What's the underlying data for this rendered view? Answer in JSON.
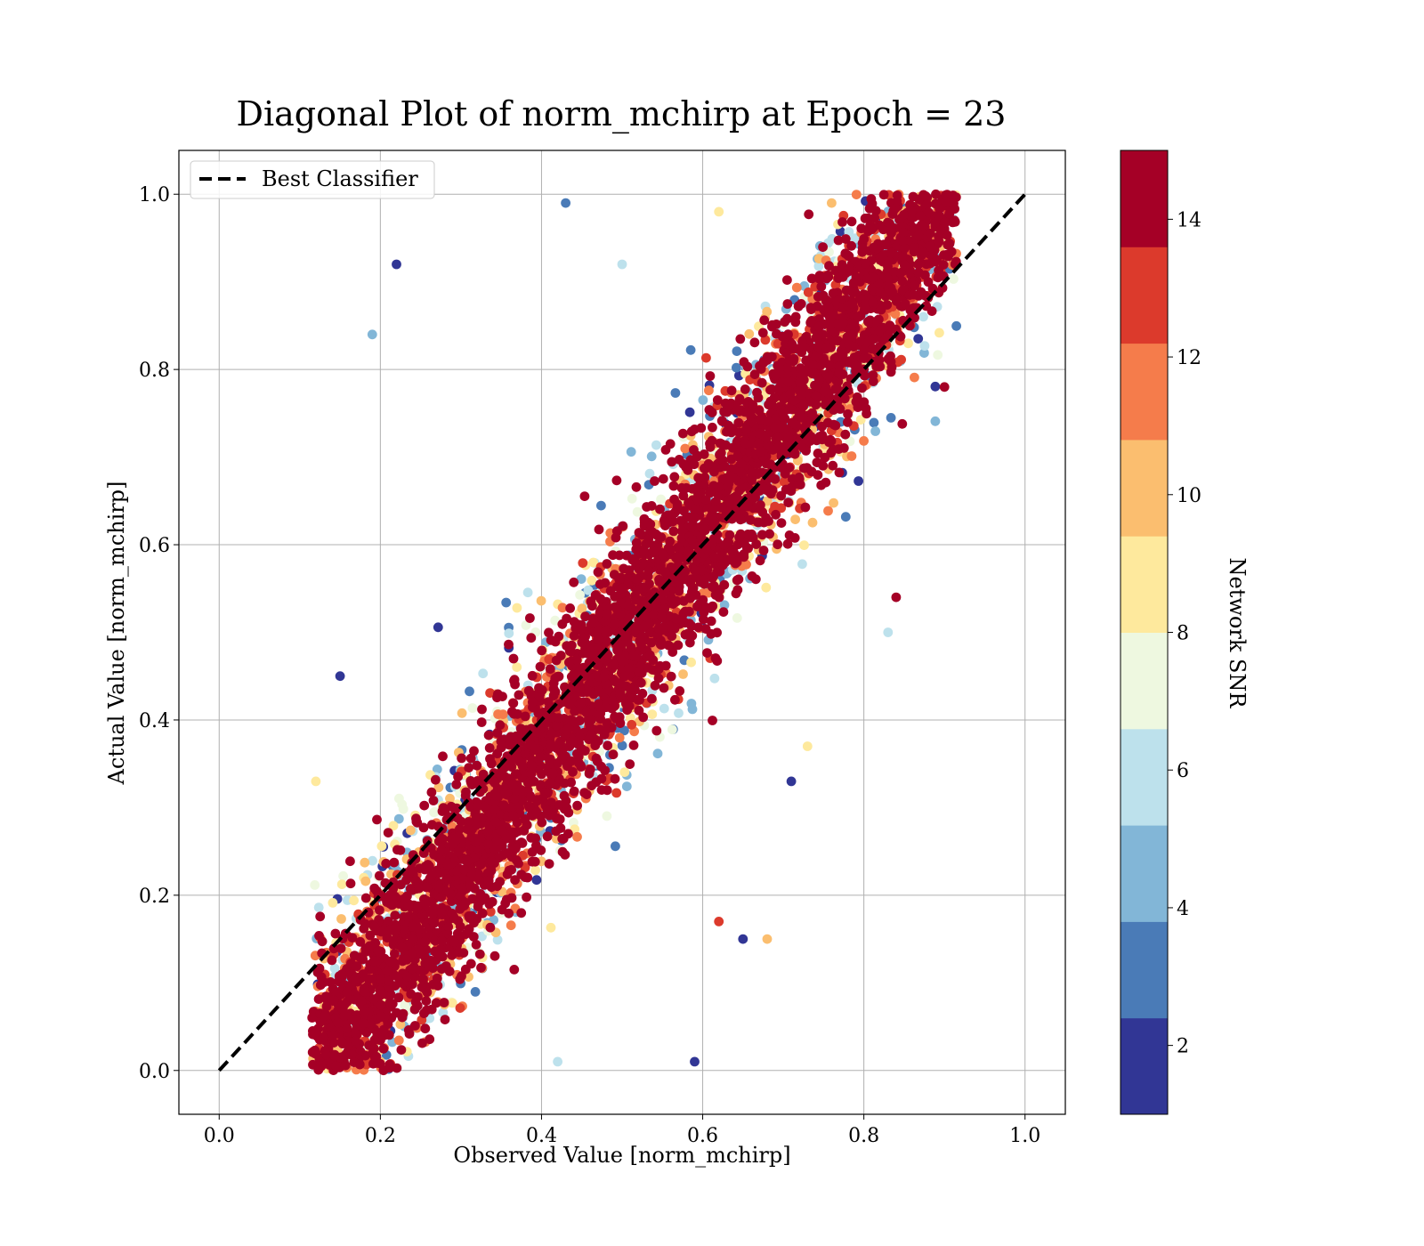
{
  "chart_data": {
    "type": "scatter",
    "title": "Diagonal Plot of norm_mchirp at Epoch = 23",
    "xlabel": "Observed Value [norm_mchirp]",
    "ylabel": "Actual Value [norm_mchirp]",
    "xlim": [
      -0.05,
      1.05
    ],
    "ylim": [
      -0.05,
      1.05
    ],
    "x_ticks": [
      0.0,
      0.2,
      0.4,
      0.6,
      0.8,
      1.0
    ],
    "y_ticks": [
      0.0,
      0.2,
      0.4,
      0.6,
      0.8,
      1.0
    ],
    "x_tick_labels": [
      "0.0",
      "0.2",
      "0.4",
      "0.6",
      "0.8",
      "1.0"
    ],
    "y_tick_labels": [
      "0.0",
      "0.2",
      "0.4",
      "0.6",
      "0.8",
      "1.0"
    ],
    "grid": true,
    "legend": {
      "placement": "top-left",
      "entries": [
        {
          "label": "Best Classifier",
          "style": "dashed",
          "color": "#000000"
        }
      ]
    },
    "reference_line": {
      "name": "Best Classifier",
      "x": [
        0.0,
        1.0
      ],
      "y": [
        0.0,
        1.0
      ]
    },
    "colorbar": {
      "label": "Network SNR",
      "range": [
        1,
        15
      ],
      "ticks": [
        2,
        4,
        6,
        8,
        10,
        12,
        14
      ],
      "tick_labels": [
        "2",
        "4",
        "6",
        "8",
        "10",
        "12",
        "14"
      ],
      "bins": 10,
      "colors": [
        "#313695",
        "#4a7bb7",
        "#82b6d7",
        "#bde1ec",
        "#eef8e0",
        "#fee99d",
        "#fbbe6f",
        "#f57c4b",
        "#dc3a2c",
        "#a50026"
      ]
    },
    "point_cloud": {
      "description_of_trend": "high SNR points lie along the diagonal; low SNR points scatter away from it",
      "x_range": [
        0.12,
        0.91
      ],
      "y_range": [
        0.0,
        1.0
      ],
      "samples": [
        {
          "x": 0.12,
          "y": 0.02,
          "snr": 14.5
        },
        {
          "x": 0.2,
          "y": 0.2,
          "snr": 14.5
        },
        {
          "x": 0.4,
          "y": 0.4,
          "snr": 14.5
        },
        {
          "x": 0.6,
          "y": 0.6,
          "snr": 14.5
        },
        {
          "x": 0.8,
          "y": 0.8,
          "snr": 14.5
        },
        {
          "x": 0.9,
          "y": 0.78,
          "snr": 14.5
        },
        {
          "x": 0.22,
          "y": 0.92,
          "snr": 2
        },
        {
          "x": 0.19,
          "y": 0.84,
          "snr": 5
        },
        {
          "x": 0.43,
          "y": 0.99,
          "snr": 3
        },
        {
          "x": 0.5,
          "y": 0.92,
          "snr": 6
        },
        {
          "x": 0.62,
          "y": 0.98,
          "snr": 8
        },
        {
          "x": 0.76,
          "y": 0.99,
          "snr": 10
        },
        {
          "x": 0.84,
          "y": 0.54,
          "snr": 14.5
        },
        {
          "x": 0.83,
          "y": 0.5,
          "snr": 6
        },
        {
          "x": 0.71,
          "y": 0.33,
          "snr": 2
        },
        {
          "x": 0.73,
          "y": 0.37,
          "snr": 9
        },
        {
          "x": 0.59,
          "y": 0.01,
          "snr": 2
        },
        {
          "x": 0.42,
          "y": 0.01,
          "snr": 6
        },
        {
          "x": 0.2,
          "y": 0.01,
          "snr": 10
        },
        {
          "x": 0.15,
          "y": 0.45,
          "snr": 2
        },
        {
          "x": 0.12,
          "y": 0.33,
          "snr": 8
        },
        {
          "x": 0.68,
          "y": 0.15,
          "snr": 10
        },
        {
          "x": 0.65,
          "y": 0.15,
          "snr": 2
        },
        {
          "x": 0.62,
          "y": 0.17,
          "snr": 13
        }
      ]
    }
  }
}
